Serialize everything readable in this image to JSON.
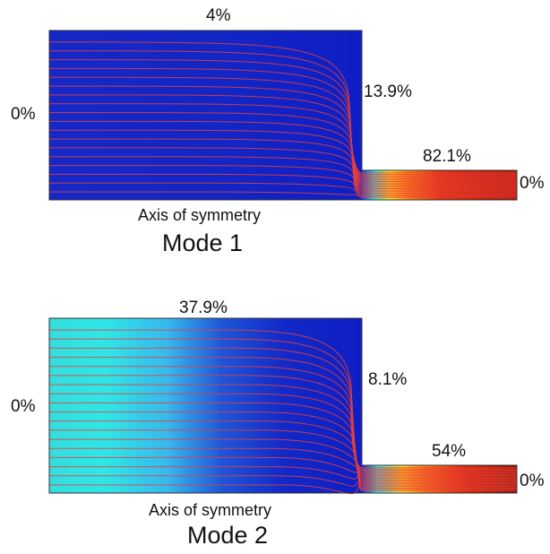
{
  "panels": [
    {
      "mode_label": "Mode 1",
      "axis_label": "Axis of symmetry",
      "pct_top": "4%",
      "pct_left": "0%",
      "pct_step": "13.9%",
      "pct_channel": "82.1%",
      "pct_right": "0%",
      "colormap": "mode1"
    },
    {
      "mode_label": "Mode 2",
      "axis_label": "Axis of symmetry",
      "pct_top": "37.9%",
      "pct_left": "0%",
      "pct_step": "8.1%",
      "pct_channel": "54%",
      "pct_right": "0%",
      "colormap": "mode2"
    }
  ],
  "colors": {
    "streamline": "#e8403a",
    "deep_blue": "#1020c8",
    "cyan": "#2ee6e6",
    "yellow": "#ffe020",
    "red": "#d02008",
    "dark_red": "#8a1004",
    "outline": "#333333"
  }
}
